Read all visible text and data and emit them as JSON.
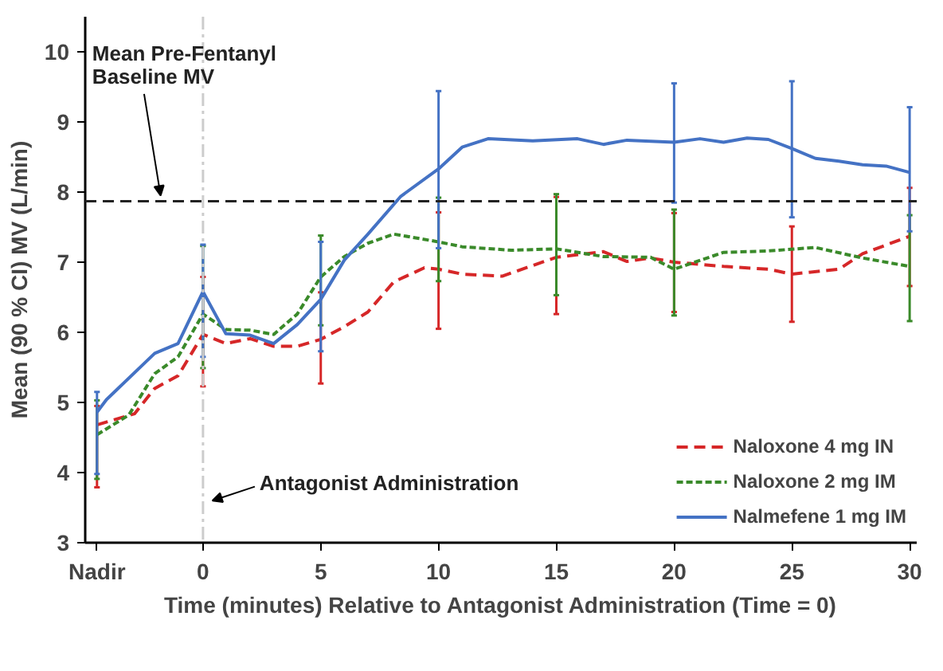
{
  "chart_data": {
    "type": "line",
    "xlabel": "Time (minutes) Relative to Antagonist Administration (Time = 0)",
    "ylabel": "Mean (90 % CI) MV (L/min)",
    "xlim": [
      -5,
      30.3
    ],
    "ylim": [
      3,
      10.5
    ],
    "xticks": [
      {
        "value": -4.5,
        "label": "Nadir"
      },
      0,
      5,
      10,
      15,
      20,
      25,
      30
    ],
    "yticks": [
      3,
      4,
      5,
      6,
      7,
      8,
      9,
      10
    ],
    "grid": false,
    "legend": "bottom right",
    "marker": "none",
    "series": [
      {
        "name": "Naloxone 4 mg IN",
        "color": "#d62728",
        "line_style": "dashed",
        "x": [
          -4.5,
          -2.9,
          -2.05,
          -1.06,
          0,
          0.97,
          2,
          3,
          4,
          5,
          6,
          7,
          8.1,
          9.4,
          10,
          11,
          12.7,
          15,
          17,
          18,
          19,
          20,
          22.1,
          24,
          25,
          27,
          28,
          30
        ],
        "values": [
          4.68,
          4.84,
          5.2,
          5.38,
          5.97,
          5.84,
          5.91,
          5.8,
          5.8,
          5.9,
          6.08,
          6.29,
          6.72,
          6.92,
          6.9,
          6.83,
          6.8,
          7.07,
          7.15,
          7.01,
          7.06,
          7.0,
          6.94,
          6.9,
          6.83,
          6.9,
          7.12,
          7.37
        ],
        "errors": [
          [
            3.79,
            4.95
          ],
          null,
          null,
          null,
          [
            5.23,
            6.79
          ],
          null,
          null,
          null,
          null,
          [
            5.27,
            6.57
          ],
          null,
          null,
          null,
          null,
          [
            6.05,
            7.71
          ],
          null,
          null,
          [
            6.26,
            7.93
          ],
          null,
          null,
          null,
          [
            6.29,
            7.7
          ],
          null,
          null,
          [
            6.15,
            7.51
          ],
          null,
          null,
          [
            6.66,
            8.06
          ]
        ]
      },
      {
        "name": "Naloxone 2 mg IM",
        "color": "#3a8a2a",
        "line_style": "dotted",
        "x": [
          -4.5,
          -3.15,
          -2.05,
          -1.06,
          0,
          0.97,
          2,
          3,
          4,
          5,
          6,
          7,
          8.1,
          10,
          11,
          13.1,
          15,
          17,
          19,
          20,
          22.1,
          24,
          26,
          28,
          30
        ],
        "values": [
          4.54,
          4.82,
          5.41,
          5.65,
          6.26,
          6.04,
          6.03,
          5.97,
          6.26,
          6.79,
          7.08,
          7.27,
          7.4,
          7.29,
          7.22,
          7.17,
          7.19,
          7.08,
          7.07,
          6.9,
          7.14,
          7.16,
          7.21,
          7.06,
          6.94
        ],
        "errors": [
          [
            3.91,
            5.03
          ],
          null,
          null,
          null,
          [
            5.49,
            7.23
          ],
          null,
          null,
          null,
          null,
          [
            6.1,
            7.38
          ],
          null,
          null,
          null,
          [
            6.73,
            7.92
          ],
          null,
          null,
          [
            6.53,
            7.97
          ],
          null,
          null,
          [
            6.24,
            7.75
          ],
          null,
          null,
          null,
          null,
          [
            6.16,
            7.67
          ]
        ]
      },
      {
        "name": "Nalmefene 1 mg IM",
        "color": "#4472c4",
        "line_style": "solid",
        "x": [
          -4.5,
          -4.1,
          -2.05,
          -1.06,
          0,
          0.97,
          2,
          3,
          4,
          5,
          6,
          7,
          8.4,
          10,
          11,
          12.1,
          14,
          15.9,
          17,
          18,
          20,
          21.1,
          22.1,
          23.1,
          24,
          25,
          26,
          27,
          28,
          29,
          30
        ],
        "values": [
          4.86,
          5.04,
          5.7,
          5.84,
          6.58,
          5.98,
          5.96,
          5.84,
          6.11,
          6.47,
          7.03,
          7.4,
          7.94,
          8.33,
          8.64,
          8.76,
          8.73,
          8.76,
          8.68,
          8.74,
          8.71,
          8.76,
          8.71,
          8.77,
          8.75,
          8.62,
          8.48,
          8.44,
          8.39,
          8.37,
          8.28
        ],
        "errors": [
          [
            3.98,
            5.15
          ],
          null,
          null,
          null,
          [
            5.65,
            7.25
          ],
          null,
          null,
          null,
          null,
          [
            5.73,
            7.29
          ],
          null,
          null,
          null,
          [
            7.2,
            9.44
          ],
          null,
          null,
          null,
          null,
          null,
          null,
          [
            7.85,
            9.55
          ],
          null,
          null,
          null,
          null,
          [
            7.64,
            9.58
          ],
          null,
          null,
          null,
          null,
          [
            7.44,
            9.21
          ]
        ]
      }
    ],
    "ref_lines": [
      {
        "axis": "y",
        "value": 7.87,
        "color": "#222222",
        "line_style": "dashed"
      },
      {
        "axis": "x",
        "value": 0,
        "color": "#cccccc",
        "line_style": "dashdot"
      }
    ],
    "annotations": [
      {
        "text": "Mean Pre-Fentanyl\nBaseline MV",
        "x": -1.8,
        "y": 7.95
      },
      "Antagonist Administration"
    ]
  }
}
